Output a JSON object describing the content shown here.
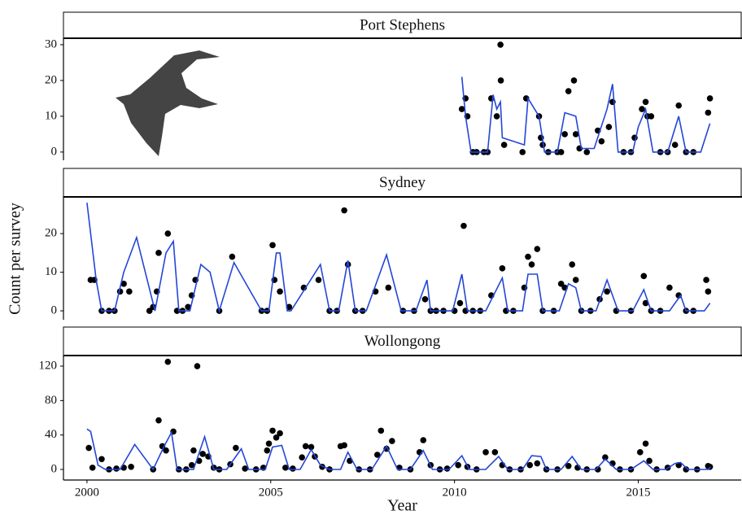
{
  "chart_data": [
    {
      "type": "scatter",
      "title": "Port Stephens",
      "xlim": [
        1999.36,
        2017.8
      ],
      "ylim": [
        -2.3,
        31.8
      ],
      "yticks": [
        0,
        10,
        20,
        30
      ],
      "series": [
        {
          "type": "scatter",
          "color": "#000000",
          "x": [
            2010.2,
            2010.3,
            2010.35,
            2010.5,
            2010.6,
            2010.8,
            2010.9,
            2011.0,
            2011.15,
            2011.25,
            2011.26,
            2011.35,
            2011.85,
            2011.95,
            2012.3,
            2012.35,
            2012.4,
            2012.55,
            2012.8,
            2012.9,
            2013.0,
            2013.1,
            2013.25,
            2013.3,
            2013.4,
            2013.6,
            2013.9,
            2014.0,
            2014.2,
            2014.3,
            2014.6,
            2014.8,
            2014.9,
            2015.1,
            2015.2,
            2015.25,
            2015.35,
            2015.6,
            2015.8,
            2016.0,
            2016.1,
            2016.3,
            2016.5,
            2016.9,
            2016.95
          ],
          "values": [
            12,
            15,
            10,
            0,
            0,
            0,
            0,
            15,
            10,
            30,
            20,
            2,
            0,
            15,
            10,
            4,
            2,
            0,
            0,
            0,
            5,
            17,
            20,
            5,
            1,
            0,
            6,
            3,
            7,
            14,
            0,
            0,
            4,
            12,
            14,
            10,
            10,
            0,
            0,
            2,
            13,
            0,
            0,
            11,
            15
          ]
        },
        {
          "type": "line",
          "color": "#2346d8",
          "x": [
            2010.2,
            2010.3,
            2010.45,
            2010.9,
            2011.05,
            2011.15,
            2011.25,
            2011.3,
            2011.9,
            2012.0,
            2012.3,
            2012.45,
            2012.8,
            2013.0,
            2013.3,
            2013.45,
            2013.8,
            2014.15,
            2014.3,
            2014.45,
            2014.85,
            2015.0,
            2015.2,
            2015.4,
            2015.8,
            2016.1,
            2016.3,
            2016.7,
            2016.95
          ],
          "values": [
            21,
            10,
            0,
            0,
            16,
            12,
            14,
            4,
            2,
            15,
            10,
            0,
            0,
            11,
            10,
            1,
            1,
            12,
            19,
            0,
            0,
            7,
            12,
            0,
            0,
            10,
            0,
            0,
            8
          ]
        }
      ]
    },
    {
      "type": "scatter",
      "title": "Sydney",
      "ylabel": "Count per survey",
      "xlim": [
        1999.36,
        2017.8
      ],
      "ylim": [
        -2.3,
        29.5
      ],
      "yticks": [
        0,
        10,
        20
      ],
      "series": [
        {
          "type": "scatter",
          "color": "#000000",
          "x": [
            2000.1,
            2000.2,
            2000.4,
            2000.6,
            2000.75,
            2000.9,
            2001.0,
            2001.15,
            2001.7,
            2001.8,
            2001.9,
            2001.95,
            2002.2,
            2002.45,
            2002.6,
            2002.75,
            2002.85,
            2002.95,
            2003.6,
            2003.95,
            2004.75,
            2004.9,
            2005.05,
            2005.1,
            2005.25,
            2005.5,
            2005.9,
            2006.3,
            2006.6,
            2006.8,
            2007.0,
            2007.1,
            2007.3,
            2007.5,
            2007.85,
            2008.2,
            2008.6,
            2008.9,
            2009.2,
            2009.35,
            2009.5,
            2009.7,
            2010.0,
            2010.15,
            2010.25,
            2010.3,
            2010.5,
            2010.7,
            2011.0,
            2011.3,
            2011.4,
            2011.6,
            2011.9,
            2012.0,
            2012.1,
            2012.25,
            2012.4,
            2012.7,
            2012.9,
            2013.0,
            2013.2,
            2013.3,
            2013.45,
            2013.7,
            2013.95,
            2014.15,
            2014.4,
            2014.8,
            2015.15,
            2015.2,
            2015.35,
            2015.6,
            2015.85,
            2016.1,
            2016.3,
            2016.5,
            2016.85,
            2016.9
          ],
          "values": [
            8,
            8,
            0,
            0,
            0,
            5,
            7,
            5,
            0,
            1,
            5,
            15,
            20,
            0,
            0,
            1,
            4,
            8,
            0,
            14,
            0,
            0,
            17,
            8,
            5,
            1,
            6,
            8,
            0,
            0,
            26,
            12,
            0,
            0,
            5,
            6,
            0,
            0,
            3,
            0,
            0,
            0,
            0,
            2,
            22,
            0,
            0,
            0,
            4,
            11,
            0,
            0,
            6,
            14,
            12,
            16,
            0,
            0,
            7,
            6,
            12,
            8,
            0,
            0,
            3,
            5,
            0,
            0,
            9,
            2,
            0,
            0,
            6,
            4,
            0,
            0,
            8,
            5
          ]
        },
        {
          "type": "line",
          "color": "#2346d8",
          "x": [
            2000.0,
            2000.25,
            2000.4,
            2000.75,
            2001.0,
            2001.35,
            2001.85,
            2002.15,
            2002.35,
            2002.5,
            2002.8,
            2003.1,
            2003.35,
            2003.6,
            2004.0,
            2004.75,
            2004.95,
            2005.15,
            2005.25,
            2005.45,
            2005.55,
            2006.35,
            2006.6,
            2006.85,
            2007.1,
            2007.3,
            2007.6,
            2008.15,
            2008.55,
            2008.95,
            2009.25,
            2009.35,
            2009.95,
            2010.2,
            2010.35,
            2010.85,
            2011.3,
            2011.45,
            2011.85,
            2012.0,
            2012.25,
            2012.4,
            2012.85,
            2013.1,
            2013.3,
            2013.45,
            2013.85,
            2014.15,
            2014.45,
            2014.85,
            2015.15,
            2015.35,
            2015.85,
            2016.15,
            2016.3,
            2016.8,
            2016.95
          ],
          "values": [
            28,
            8,
            0,
            0,
            10,
            19,
            0,
            15,
            18,
            0,
            0,
            12,
            10,
            0,
            12.5,
            0,
            0,
            15,
            15,
            0,
            0,
            12,
            0,
            0,
            13,
            0,
            0,
            14.5,
            0,
            0,
            8,
            0,
            0,
            9.5,
            0,
            0,
            8.5,
            0,
            0,
            9.5,
            9.5,
            0,
            0,
            7,
            6,
            0,
            0,
            8,
            0,
            0,
            5.5,
            0,
            0,
            4,
            0,
            0,
            2
          ]
        }
      ]
    },
    {
      "type": "scatter",
      "title": "Wollongong",
      "xlabel": "Year",
      "xlim": [
        1999.36,
        2017.8
      ],
      "ylim": [
        -12.3,
        132.3
      ],
      "yticks": [
        0,
        40,
        80,
        120
      ],
      "xticks": [
        2000,
        2005,
        2010,
        2015
      ],
      "series": [
        {
          "type": "scatter",
          "color": "#000000",
          "x": [
            2000.05,
            2000.15,
            2000.4,
            2000.6,
            2000.8,
            2001.0,
            2001.2,
            2001.8,
            2001.95,
            2002.05,
            2002.15,
            2002.2,
            2002.35,
            2002.5,
            2002.7,
            2002.85,
            2002.9,
            2003.0,
            2003.05,
            2003.15,
            2003.3,
            2003.45,
            2003.6,
            2003.9,
            2004.05,
            2004.3,
            2004.6,
            2004.8,
            2004.9,
            2004.95,
            2005.05,
            2005.15,
            2005.25,
            2005.4,
            2005.6,
            2005.85,
            2005.95,
            2006.1,
            2006.2,
            2006.4,
            2006.6,
            2006.9,
            2007.0,
            2007.15,
            2007.4,
            2007.7,
            2007.9,
            2008.0,
            2008.15,
            2008.3,
            2008.5,
            2008.8,
            2009.05,
            2009.15,
            2009.35,
            2009.6,
            2009.8,
            2010.1,
            2010.35,
            2010.6,
            2010.85,
            2011.1,
            2011.3,
            2011.5,
            2011.8,
            2012.05,
            2012.25,
            2012.5,
            2012.8,
            2013.1,
            2013.35,
            2013.6,
            2013.9,
            2014.1,
            2014.3,
            2014.5,
            2014.8,
            2015.05,
            2015.2,
            2015.3,
            2015.5,
            2015.8,
            2016.1,
            2016.3,
            2016.6,
            2016.9,
            2016.95
          ],
          "values": [
            25,
            2,
            12,
            0,
            1,
            2,
            3,
            0,
            57,
            27,
            22,
            125,
            44,
            0,
            0,
            5,
            22,
            120,
            10,
            18,
            15,
            2,
            0,
            6,
            25,
            1,
            0,
            2,
            22,
            30,
            45,
            37,
            42,
            2,
            1,
            14,
            27,
            26,
            15,
            3,
            0,
            27,
            28,
            10,
            0,
            0,
            17,
            45,
            24,
            33,
            2,
            0,
            20,
            34,
            5,
            0,
            1,
            5,
            3,
            0,
            20,
            20,
            5,
            0,
            0,
            5,
            7,
            0,
            0,
            4,
            2,
            0,
            0,
            14,
            7,
            0,
            0,
            20,
            30,
            10,
            0,
            2,
            5,
            0,
            0,
            4,
            3
          ]
        },
        {
          "type": "line",
          "color": "#2346d8",
          "x": [
            2000.0,
            2000.1,
            2000.3,
            2000.5,
            2000.9,
            2001.3,
            2001.8,
            2002.1,
            2002.3,
            2002.45,
            2002.9,
            2003.2,
            2003.45,
            2003.8,
            2004.2,
            2004.4,
            2004.85,
            2005.05,
            2005.3,
            2005.5,
            2005.8,
            2006.1,
            2006.35,
            2006.6,
            2006.9,
            2007.1,
            2007.35,
            2007.75,
            2008.15,
            2008.45,
            2008.8,
            2009.15,
            2009.4,
            2009.85,
            2010.2,
            2010.4,
            2010.85,
            2011.2,
            2011.45,
            2011.85,
            2012.1,
            2012.35,
            2012.5,
            2012.9,
            2013.2,
            2013.45,
            2013.85,
            2014.1,
            2014.4,
            2014.8,
            2015.15,
            2015.4,
            2015.75,
            2016.0,
            2016.15,
            2016.35,
            2016.9,
            2016.97
          ],
          "values": [
            47,
            44,
            5,
            0,
            0,
            29,
            0,
            27,
            43,
            0,
            0,
            38,
            0,
            0,
            24,
            0,
            0,
            26,
            28,
            0,
            0,
            23,
            5,
            0,
            0,
            20,
            0,
            0,
            27,
            0,
            0,
            22,
            0,
            0,
            16,
            0,
            0,
            15,
            0,
            0,
            16,
            15,
            0,
            0,
            15,
            0,
            0,
            12,
            0,
            0,
            10,
            0,
            0,
            7,
            8,
            0,
            0,
            3
          ]
        }
      ]
    }
  ]
}
